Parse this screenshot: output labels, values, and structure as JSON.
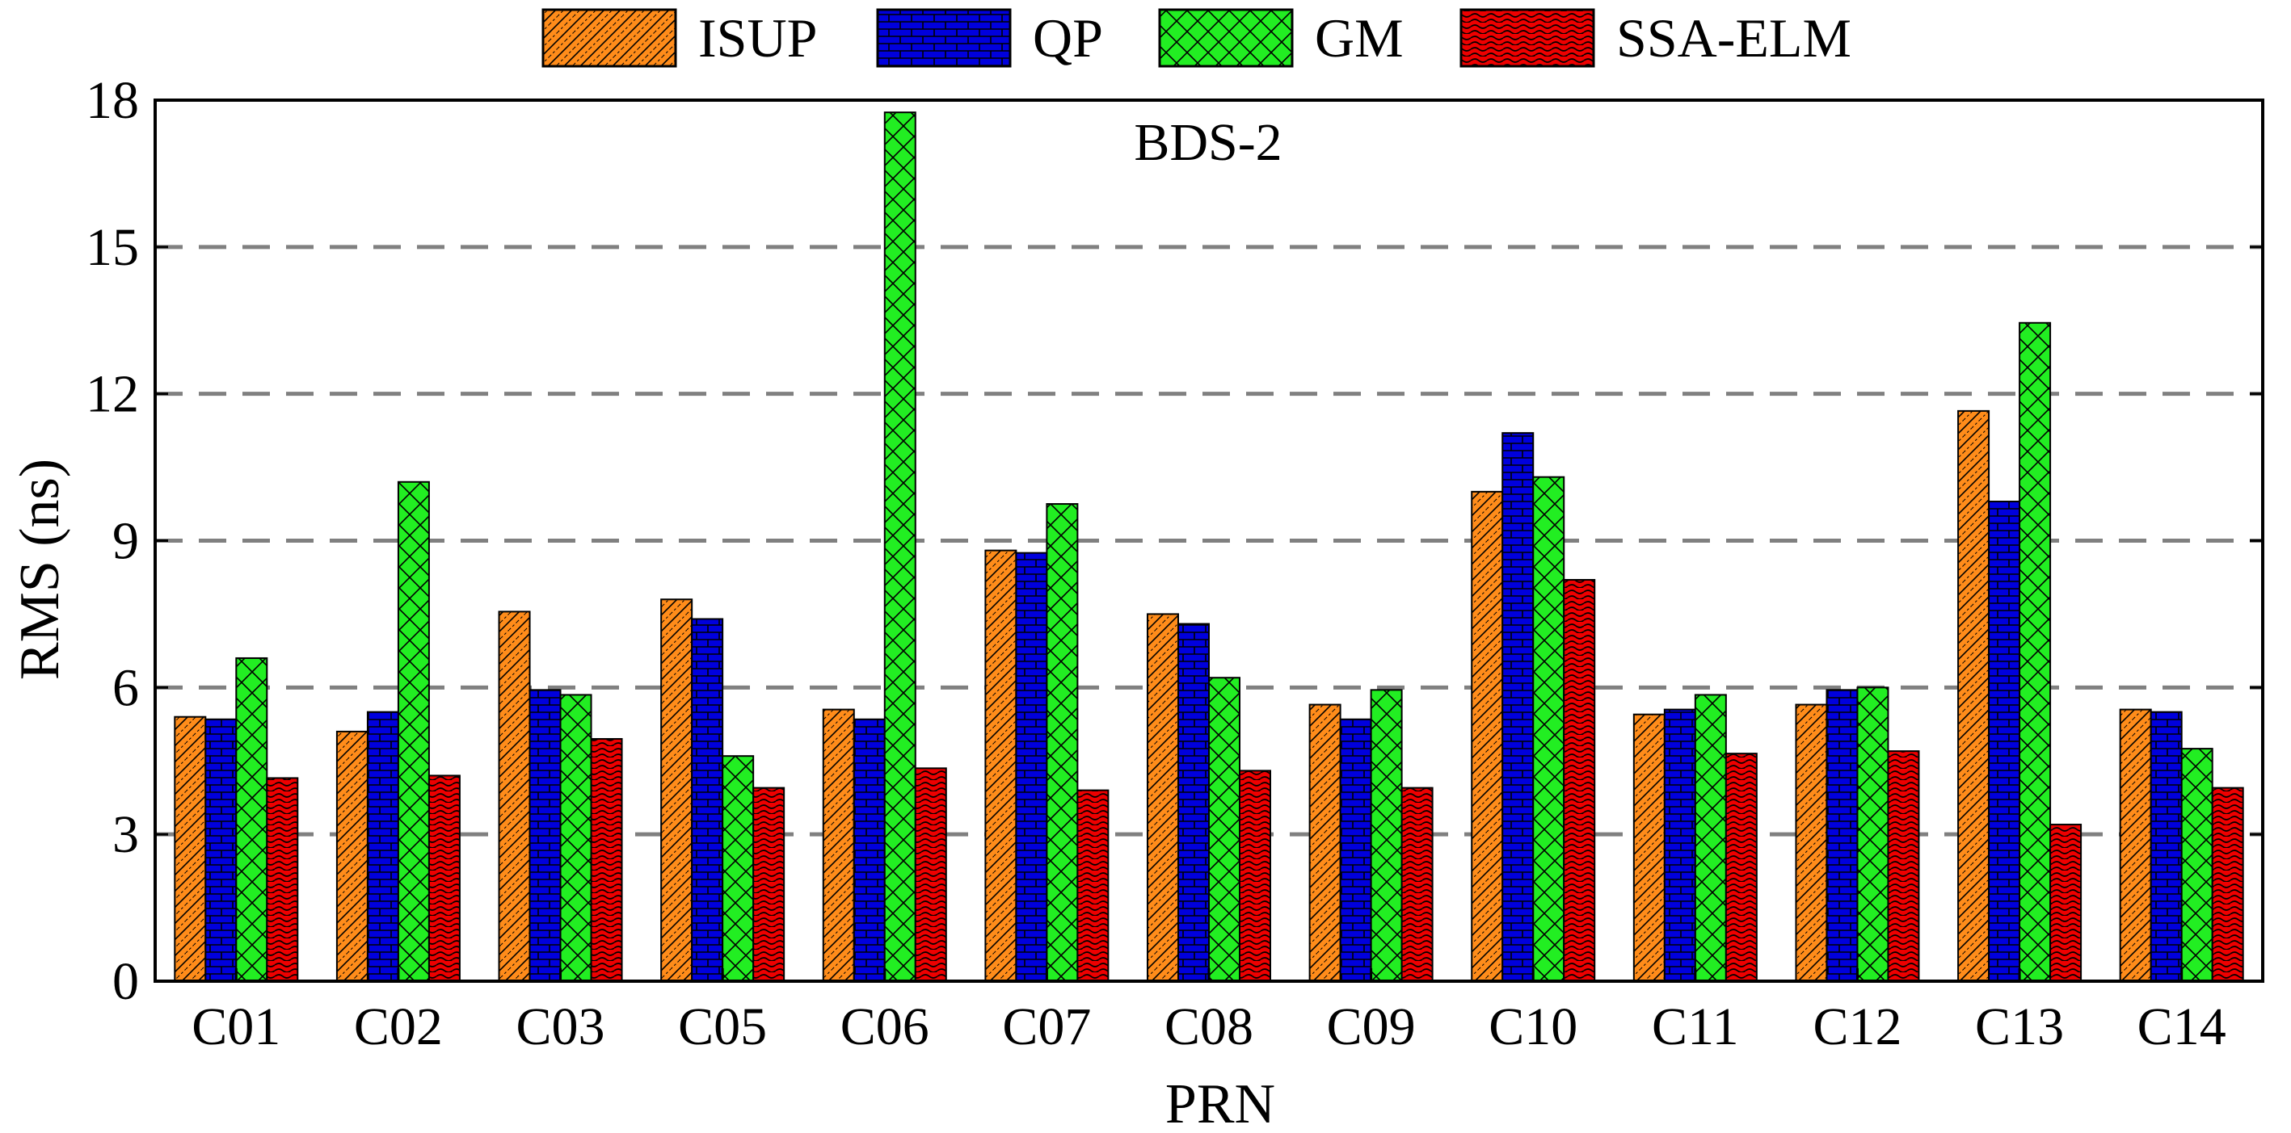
{
  "chart_data": {
    "type": "bar",
    "title": "",
    "annotation": "BDS-2",
    "xlabel": "PRN",
    "ylabel": "RMS (ns)",
    "ylim": [
      0,
      18
    ],
    "yticks": [
      0,
      3,
      6,
      9,
      12,
      15,
      18
    ],
    "grid": "horizontal dashed at 3, 6, 9, 12, 15",
    "legend_position": "top",
    "categories": [
      "C01",
      "C02",
      "C03",
      "C05",
      "C06",
      "C07",
      "C08",
      "C09",
      "C10",
      "C11",
      "C12",
      "C13",
      "C14"
    ],
    "series": [
      {
        "name": "ISUP",
        "color": "#ff8c1a",
        "pattern": "diagonal-hatch",
        "values": [
          5.4,
          5.1,
          7.55,
          7.8,
          5.55,
          8.8,
          7.5,
          5.65,
          10.0,
          5.45,
          5.65,
          11.65,
          5.55
        ]
      },
      {
        "name": "QP",
        "color": "#0000dd",
        "pattern": "brick",
        "values": [
          5.35,
          5.5,
          5.95,
          7.4,
          5.35,
          8.75,
          7.3,
          5.35,
          11.2,
          5.55,
          5.95,
          9.8,
          5.5
        ]
      },
      {
        "name": "GM",
        "color": "#22ee22",
        "pattern": "crosshatch",
        "values": [
          6.6,
          10.2,
          5.85,
          4.6,
          17.75,
          9.75,
          6.2,
          5.95,
          10.3,
          5.85,
          6.0,
          13.45,
          4.75
        ]
      },
      {
        "name": "SSA-ELM",
        "color": "#ee0000",
        "pattern": "wave",
        "values": [
          4.15,
          4.2,
          4.95,
          3.95,
          4.35,
          3.9,
          4.3,
          3.95,
          8.2,
          4.65,
          4.7,
          3.2,
          3.95
        ]
      }
    ]
  }
}
